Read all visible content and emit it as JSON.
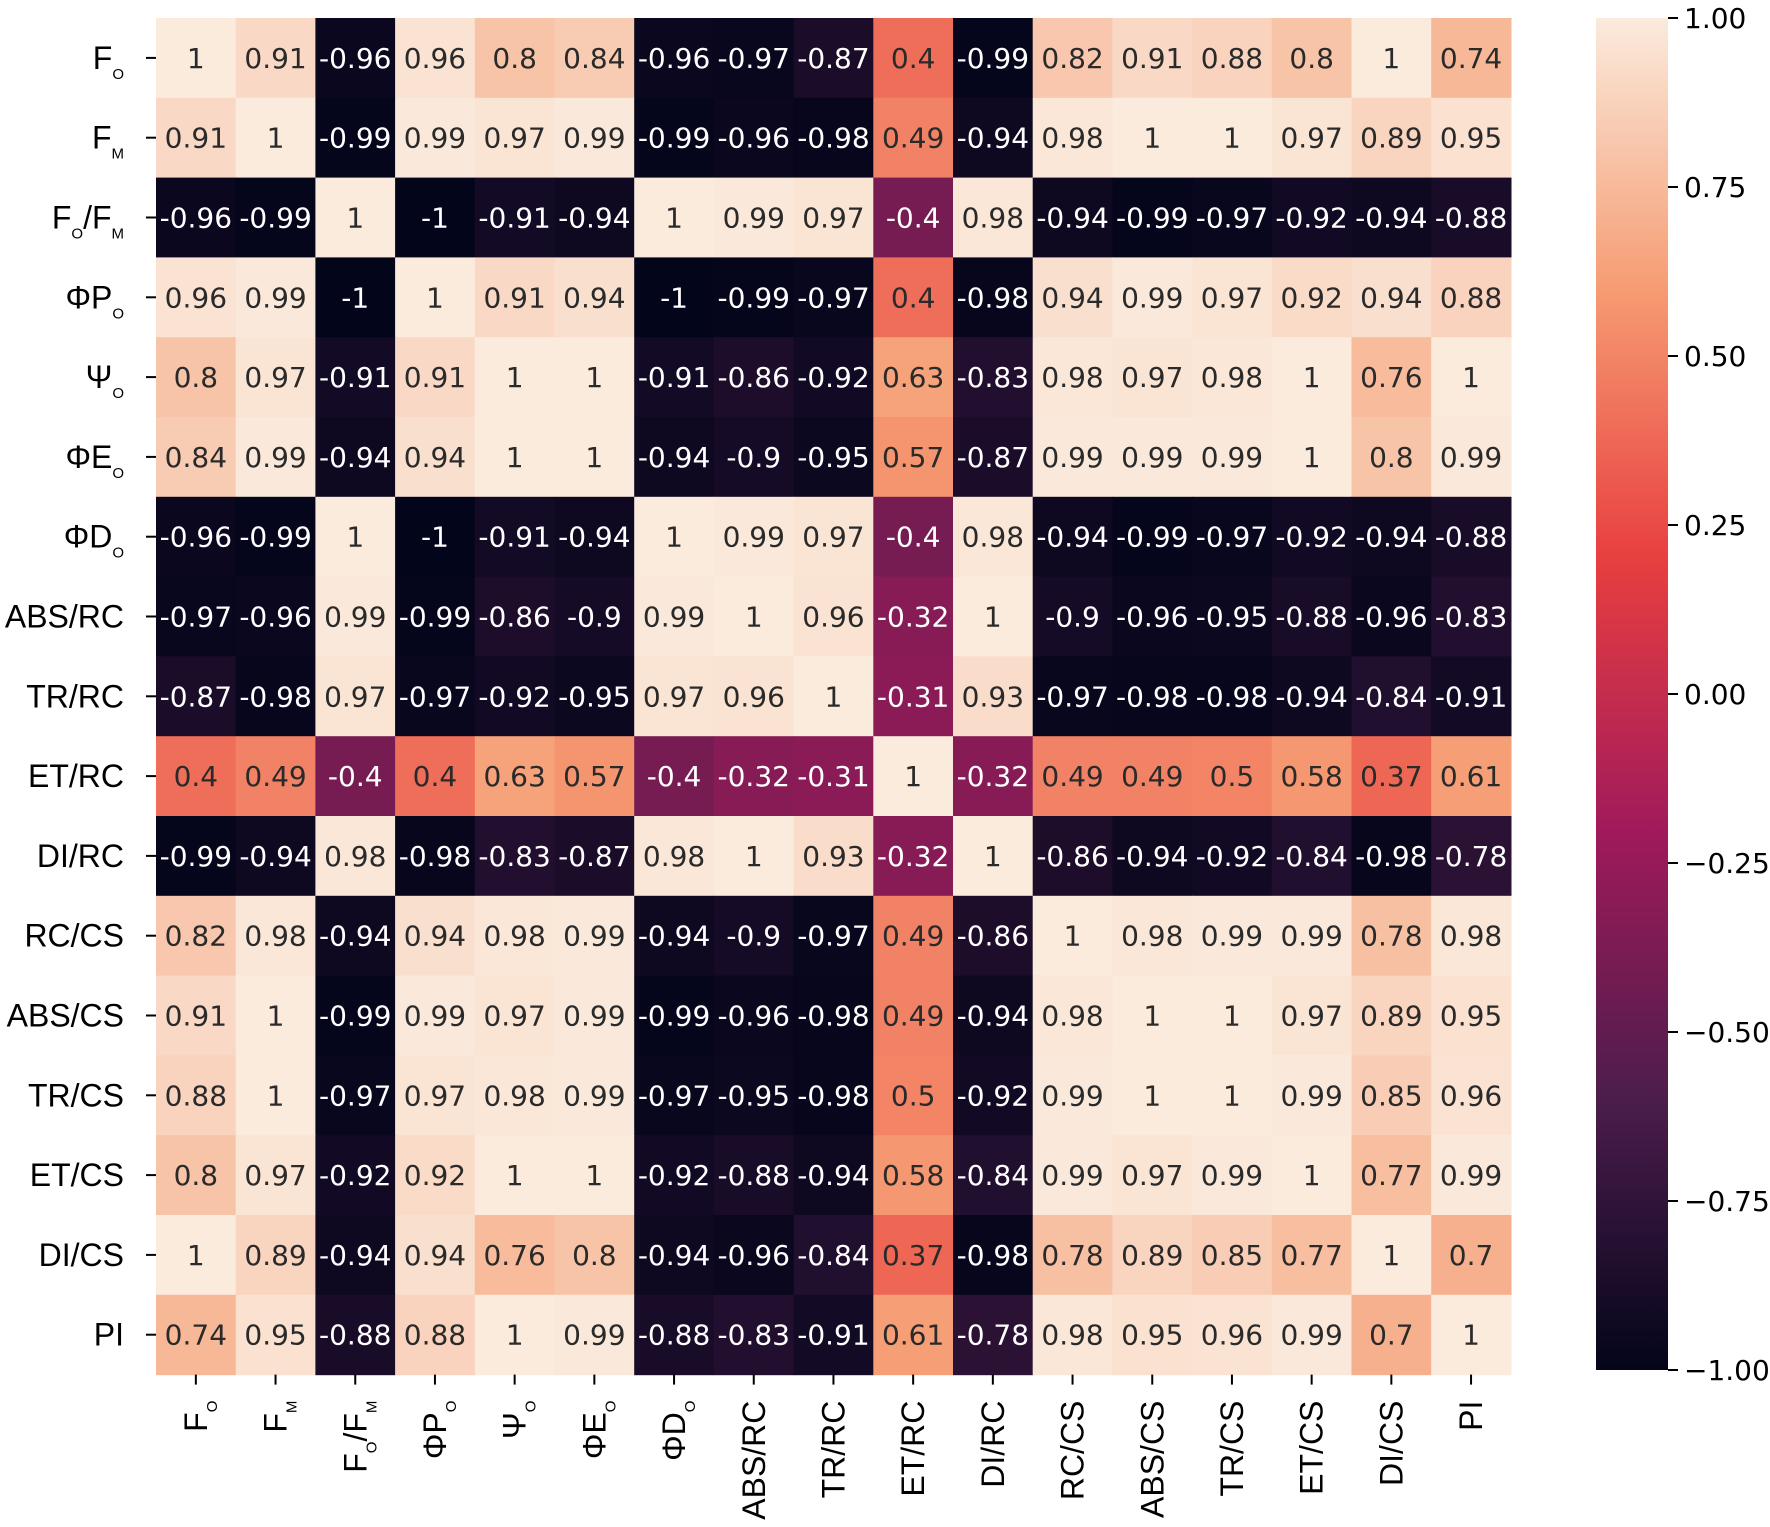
{
  "chart_data": {
    "type": "heatmap",
    "title": "",
    "xlabel": "",
    "ylabel": "",
    "labels": [
      {
        "id": "Fo",
        "parts": [
          [
            "F",
            ""
          ],
          [
            "O",
            "sub"
          ]
        ]
      },
      {
        "id": "FM",
        "parts": [
          [
            "F",
            ""
          ],
          [
            "M",
            "sub"
          ]
        ]
      },
      {
        "id": "Fo/FM",
        "parts": [
          [
            "F",
            ""
          ],
          [
            "O",
            "sub"
          ],
          [
            "/F",
            ""
          ],
          [
            "M",
            "sub"
          ]
        ]
      },
      {
        "id": "ΦPo",
        "parts": [
          [
            "ΦP",
            ""
          ],
          [
            "O",
            "sub"
          ]
        ]
      },
      {
        "id": "Ψo",
        "parts": [
          [
            "Ψ",
            ""
          ],
          [
            "O",
            "sub"
          ]
        ]
      },
      {
        "id": "ΦEo",
        "parts": [
          [
            "ΦE",
            ""
          ],
          [
            "O",
            "sub"
          ]
        ]
      },
      {
        "id": "ΦDo",
        "parts": [
          [
            "ΦD",
            ""
          ],
          [
            "O",
            "sub"
          ]
        ]
      },
      {
        "id": "ABS/RC",
        "parts": [
          [
            "ABS/RC",
            ""
          ]
        ]
      },
      {
        "id": "TR/RC",
        "parts": [
          [
            "TR/RC",
            ""
          ]
        ]
      },
      {
        "id": "ET/RC",
        "parts": [
          [
            "ET/RC",
            ""
          ]
        ]
      },
      {
        "id": "DI/RC",
        "parts": [
          [
            "DI/RC",
            ""
          ]
        ]
      },
      {
        "id": "RC/CS",
        "parts": [
          [
            "RC/CS",
            ""
          ]
        ]
      },
      {
        "id": "ABS/CS",
        "parts": [
          [
            "ABS/CS",
            ""
          ]
        ]
      },
      {
        "id": "TR/CS",
        "parts": [
          [
            "TR/CS",
            ""
          ]
        ]
      },
      {
        "id": "ET/CS",
        "parts": [
          [
            "ET/CS",
            ""
          ]
        ]
      },
      {
        "id": "DI/CS",
        "parts": [
          [
            "DI/CS",
            ""
          ]
        ]
      },
      {
        "id": "PI",
        "parts": [
          [
            "PI",
            ""
          ]
        ]
      }
    ],
    "values": [
      [
        1,
        0.91,
        -0.96,
        0.96,
        0.8,
        0.84,
        -0.96,
        -0.97,
        -0.87,
        0.4,
        -0.99,
        0.82,
        0.91,
        0.88,
        0.8,
        1,
        0.74
      ],
      [
        0.91,
        1,
        -0.99,
        0.99,
        0.97,
        0.99,
        -0.99,
        -0.96,
        -0.98,
        0.49,
        -0.94,
        0.98,
        1,
        1,
        0.97,
        0.89,
        0.95
      ],
      [
        -0.96,
        -0.99,
        1,
        -1,
        -0.91,
        -0.94,
        1,
        0.99,
        0.97,
        -0.4,
        0.98,
        -0.94,
        -0.99,
        -0.97,
        -0.92,
        -0.94,
        -0.88
      ],
      [
        0.96,
        0.99,
        -1,
        1,
        0.91,
        0.94,
        -1,
        -0.99,
        -0.97,
        0.4,
        -0.98,
        0.94,
        0.99,
        0.97,
        0.92,
        0.94,
        0.88
      ],
      [
        0.8,
        0.97,
        -0.91,
        0.91,
        1,
        1,
        -0.91,
        -0.86,
        -0.92,
        0.63,
        -0.83,
        0.98,
        0.97,
        0.98,
        1,
        0.76,
        1
      ],
      [
        0.84,
        0.99,
        -0.94,
        0.94,
        1,
        1,
        -0.94,
        -0.9,
        -0.95,
        0.57,
        -0.87,
        0.99,
        0.99,
        0.99,
        1,
        0.8,
        0.99
      ],
      [
        -0.96,
        -0.99,
        1,
        -1,
        -0.91,
        -0.94,
        1,
        0.99,
        0.97,
        -0.4,
        0.98,
        -0.94,
        -0.99,
        -0.97,
        -0.92,
        -0.94,
        -0.88
      ],
      [
        -0.97,
        -0.96,
        0.99,
        -0.99,
        -0.86,
        -0.9,
        0.99,
        1,
        0.96,
        -0.32,
        1,
        -0.9,
        -0.96,
        -0.95,
        -0.88,
        -0.96,
        -0.83
      ],
      [
        -0.87,
        -0.98,
        0.97,
        -0.97,
        -0.92,
        -0.95,
        0.97,
        0.96,
        1,
        -0.31,
        0.93,
        -0.97,
        -0.98,
        -0.98,
        -0.94,
        -0.84,
        -0.91
      ],
      [
        0.4,
        0.49,
        -0.4,
        0.4,
        0.63,
        0.57,
        -0.4,
        -0.32,
        -0.31,
        1,
        -0.32,
        0.49,
        0.49,
        0.5,
        0.58,
        0.37,
        0.61
      ],
      [
        -0.99,
        -0.94,
        0.98,
        -0.98,
        -0.83,
        -0.87,
        0.98,
        1,
        0.93,
        -0.32,
        1,
        -0.86,
        -0.94,
        -0.92,
        -0.84,
        -0.98,
        -0.78
      ],
      [
        0.82,
        0.98,
        -0.94,
        0.94,
        0.98,
        0.99,
        -0.94,
        -0.9,
        -0.97,
        0.49,
        -0.86,
        1,
        0.98,
        0.99,
        0.99,
        0.78,
        0.98
      ],
      [
        0.91,
        1,
        -0.99,
        0.99,
        0.97,
        0.99,
        -0.99,
        -0.96,
        -0.98,
        0.49,
        -0.94,
        0.98,
        1,
        1,
        0.97,
        0.89,
        0.95
      ],
      [
        0.88,
        1,
        -0.97,
        0.97,
        0.98,
        0.99,
        -0.97,
        -0.95,
        -0.98,
        0.5,
        -0.92,
        0.99,
        1,
        1,
        0.99,
        0.85,
        0.96
      ],
      [
        0.8,
        0.97,
        -0.92,
        0.92,
        1,
        1,
        -0.92,
        -0.88,
        -0.94,
        0.58,
        -0.84,
        0.99,
        0.97,
        0.99,
        1,
        0.77,
        0.99
      ],
      [
        1,
        0.89,
        -0.94,
        0.94,
        0.76,
        0.8,
        -0.94,
        -0.96,
        -0.84,
        0.37,
        -0.98,
        0.78,
        0.89,
        0.85,
        0.77,
        1,
        0.7
      ],
      [
        0.74,
        0.95,
        -0.88,
        0.88,
        1,
        0.99,
        -0.88,
        -0.83,
        -0.91,
        0.61,
        -0.78,
        0.98,
        0.95,
        0.96,
        0.99,
        0.7,
        1
      ]
    ],
    "colorbar": {
      "min": -1,
      "max": 1,
      "ticks": [
        1,
        0.75,
        0.5,
        0.25,
        0,
        -0.25,
        -0.5,
        -0.75,
        -1
      ],
      "tick_labels": [
        "1.00",
        "0.75",
        "0.50",
        "0.25",
        "0.00",
        "−0.25",
        "−0.50",
        "−0.75",
        "−1.00"
      ],
      "colormap": "rocket",
      "stops": [
        "#03051a",
        "#4c1d4b",
        "#a11a5b",
        "#e83f3f",
        "#f69c73",
        "#faebdd"
      ]
    },
    "grid": false,
    "legend": "right"
  }
}
